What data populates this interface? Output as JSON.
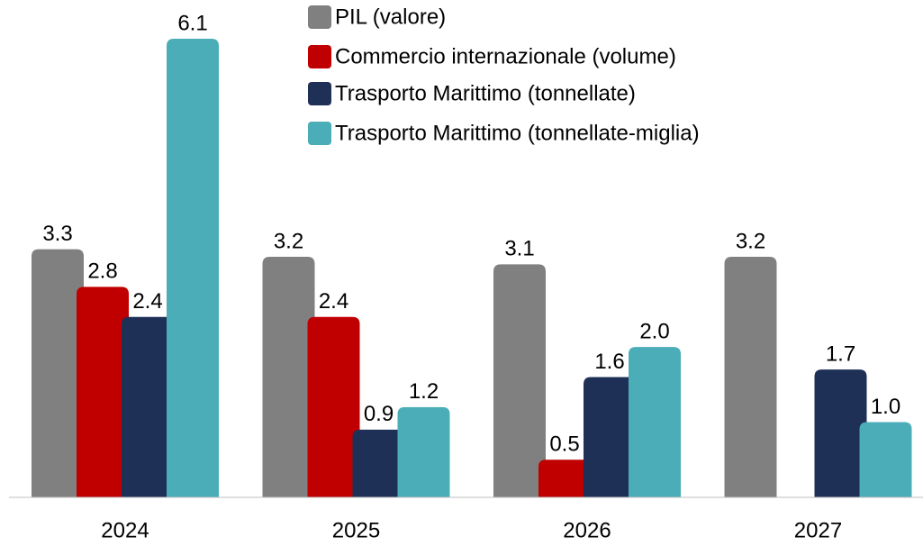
{
  "chart_data": {
    "type": "bar",
    "categories": [
      "2024",
      "2025",
      "2026",
      "2027"
    ],
    "series": [
      {
        "name": "PIL (valore)",
        "color": "#808080",
        "values": [
          3.3,
          3.2,
          3.1,
          3.2
        ],
        "value_labels": [
          "3.3",
          "3.2",
          "3.1",
          "3.2"
        ]
      },
      {
        "name": "Commercio internazionale (volume)",
        "color": "#c00000",
        "values": [
          2.8,
          2.4,
          0.5,
          null
        ],
        "value_labels": [
          "2.8",
          "2.4",
          "0.5",
          null
        ]
      },
      {
        "name": "Trasporto Marittimo (tonnellate)",
        "color": "#1f3057",
        "values": [
          2.4,
          0.9,
          1.6,
          1.7
        ],
        "value_labels": [
          "2.4",
          "0.9",
          "1.6",
          "1.7"
        ]
      },
      {
        "name": "Trasporto Marittimo (tonnellate-miglia)",
        "color": "#4aadb7",
        "values": [
          6.1,
          1.2,
          2.0,
          1.0
        ],
        "value_labels": [
          "6.1",
          "1.2",
          "2.0",
          "1.0"
        ]
      }
    ]
  }
}
